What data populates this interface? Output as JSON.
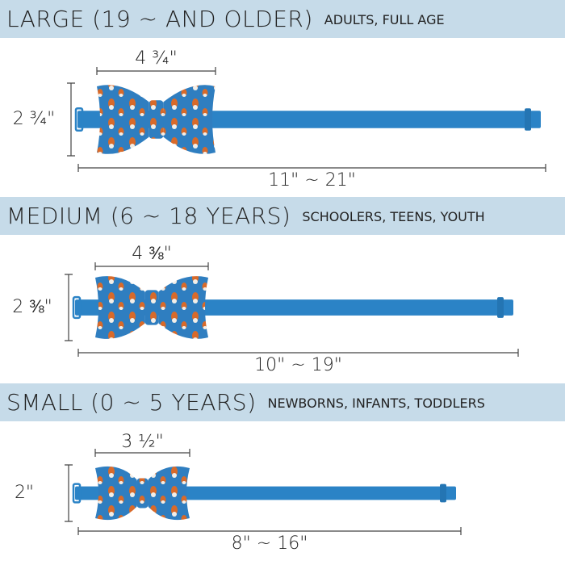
{
  "sections": [
    {
      "title": "LARGE (19 ~ AND OLDER)",
      "subtitle": "ADULTS, FULL AGE",
      "width": "4 ¾\"",
      "height": "2 ¾\"",
      "length": "11\" ~ 21\""
    },
    {
      "title": "MEDIUM (6 ~ 18 YEARS)",
      "subtitle": "SCHOOLERS, TEENS, YOUTH",
      "width": "4 ⅜\"",
      "height": "2 ⅜\"",
      "length": "10\" ~ 19\""
    },
    {
      "title": "SMALL (0 ~ 5 YEARS)",
      "subtitle": "NEWBORNS, INFANTS, TODDLERS",
      "width": "3 ½\"",
      "height": "2\"",
      "length": "8\" ~ 16\""
    }
  ]
}
